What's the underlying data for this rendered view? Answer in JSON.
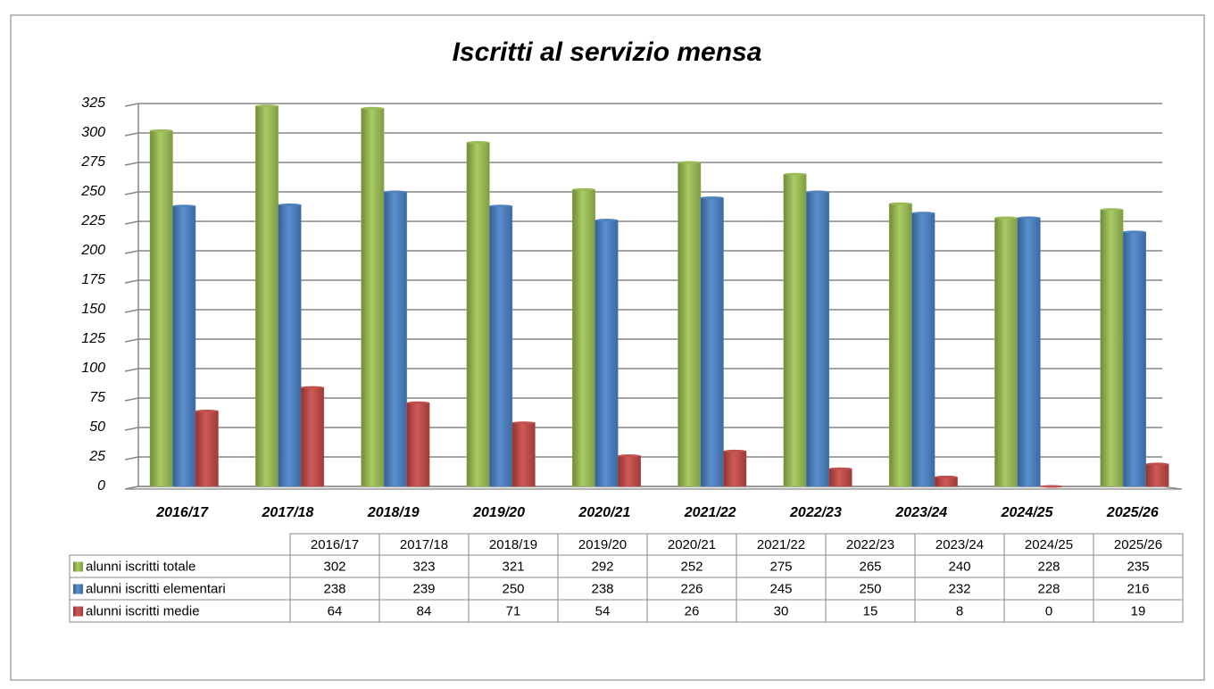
{
  "chart_data": {
    "type": "bar",
    "title": "Iscritti al servizio mensa",
    "categories": [
      "2016/17",
      "2017/18",
      "2018/19",
      "2019/20",
      "2020/21",
      "2021/22",
      "2022/23",
      "2023/24",
      "2024/25",
      "2025/26"
    ],
    "series": [
      {
        "name": "alunni iscritti totale",
        "color": "#9bbb59",
        "values": [
          302,
          323,
          321,
          292,
          252,
          275,
          265,
          240,
          228,
          235
        ]
      },
      {
        "name": "alunni iscritti elementari",
        "color": "#4f81bd",
        "values": [
          238,
          239,
          250,
          238,
          226,
          245,
          250,
          232,
          228,
          216
        ]
      },
      {
        "name": "alunni iscritti medie",
        "color": "#c0504d",
        "values": [
          64,
          84,
          71,
          54,
          26,
          30,
          15,
          8,
          0,
          19
        ]
      }
    ],
    "ylim": [
      0,
      325
    ],
    "yticks": [
      0,
      25,
      50,
      75,
      100,
      125,
      150,
      175,
      200,
      225,
      250,
      275,
      300,
      325
    ],
    "grid": true
  }
}
